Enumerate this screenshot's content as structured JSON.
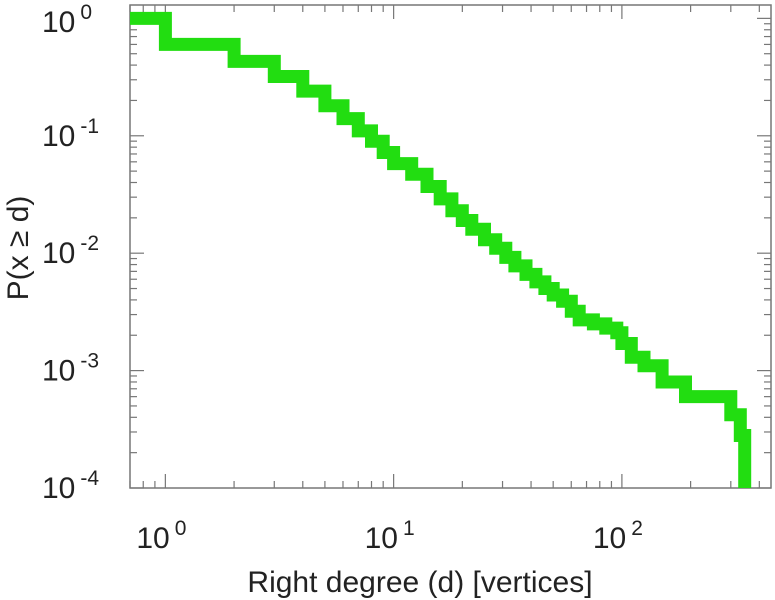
{
  "chart_data": {
    "type": "line",
    "step": "post",
    "xscale": "log",
    "yscale": "log",
    "xlim": [
      0.7,
      450
    ],
    "ylim": [
      0.0001,
      1.3
    ],
    "xlabel": "Right degree (d) [vertices]",
    "ylabel": "P(x ≥ d)",
    "title": "",
    "grid": false,
    "line_color": "#22dd11",
    "x_ticks": [
      {
        "base": "10",
        "exp": "0"
      },
      {
        "base": "10",
        "exp": "1"
      },
      {
        "base": "10",
        "exp": "2"
      }
    ],
    "y_ticks": [
      {
        "base": "10",
        "exp": "-4"
      },
      {
        "base": "10",
        "exp": "-3"
      },
      {
        "base": "10",
        "exp": "-2"
      },
      {
        "base": "10",
        "exp": "-1"
      },
      {
        "base": "10",
        "exp": "0"
      }
    ],
    "series": [
      {
        "points": [
          [
            0.7,
            1.0
          ],
          [
            1,
            0.6
          ],
          [
            2,
            0.43
          ],
          [
            3,
            0.32
          ],
          [
            4,
            0.24
          ],
          [
            5,
            0.18
          ],
          [
            6,
            0.14
          ],
          [
            7,
            0.11
          ],
          [
            8,
            0.09
          ],
          [
            9,
            0.072
          ],
          [
            10,
            0.058
          ],
          [
            12,
            0.047
          ],
          [
            14,
            0.037
          ],
          [
            16,
            0.029
          ],
          [
            18,
            0.023
          ],
          [
            20,
            0.019
          ],
          [
            22,
            0.016
          ],
          [
            25,
            0.013
          ],
          [
            28,
            0.011
          ],
          [
            31,
            0.0092
          ],
          [
            34,
            0.0078
          ],
          [
            38,
            0.0066
          ],
          [
            42,
            0.0057
          ],
          [
            46,
            0.005
          ],
          [
            50,
            0.0044
          ],
          [
            55,
            0.0039
          ],
          [
            60,
            0.0032
          ],
          [
            65,
            0.0027
          ],
          [
            75,
            0.0025
          ],
          [
            85,
            0.0023
          ],
          [
            95,
            0.0021
          ],
          [
            100,
            0.0017
          ],
          [
            110,
            0.0013
          ],
          [
            125,
            0.0011
          ],
          [
            150,
            0.0008
          ],
          [
            190,
            0.0006
          ],
          [
            300,
            0.00042
          ],
          [
            330,
            0.00028
          ],
          [
            345,
            0.0001
          ]
        ]
      }
    ]
  }
}
